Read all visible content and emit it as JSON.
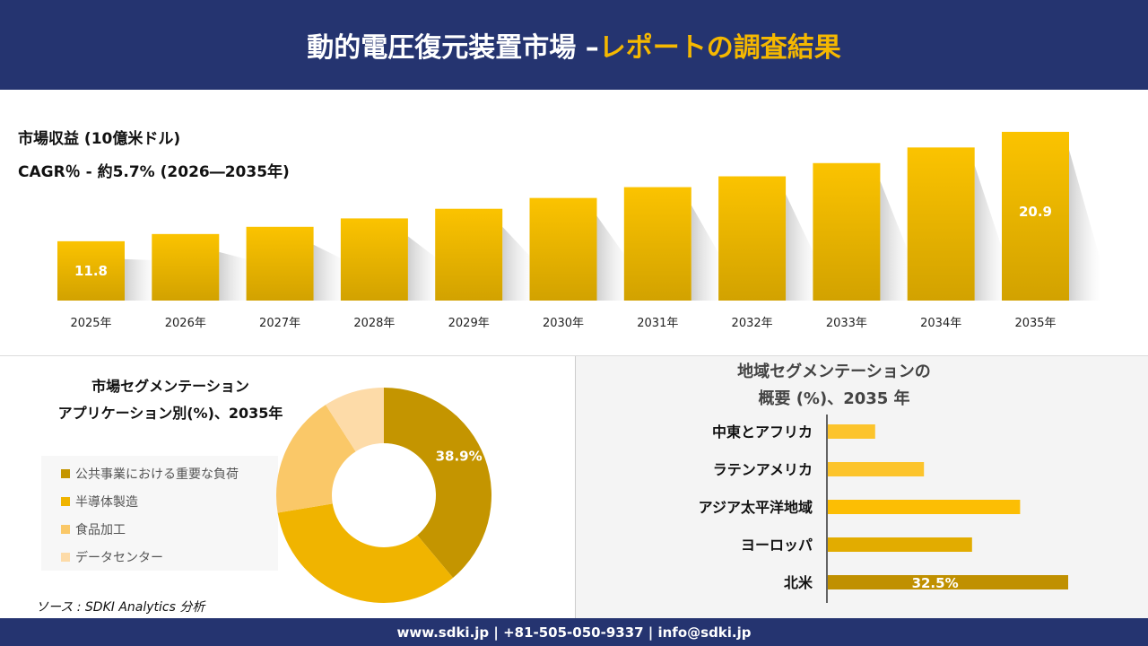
{
  "header": {
    "title_main": "動的電圧復元装置市場 –",
    "title_accent": "レポートの調査結果"
  },
  "revenue": {
    "label": "市場収益 (10億米ドル)",
    "cagr": "CAGR％ - 約5.7% (2026―2035年)"
  },
  "colors": {
    "header": "#253470",
    "accent": "#f5b800",
    "bar": "#e6b000"
  },
  "chart_data": [
    {
      "type": "bar",
      "categories": [
        "2025年",
        "2026年",
        "2027年",
        "2028年",
        "2029年",
        "2030年",
        "2031年",
        "2032年",
        "2033年",
        "2034年",
        "2035年"
      ],
      "values": [
        11.8,
        12.4,
        13.0,
        13.7,
        14.5,
        15.4,
        16.3,
        17.2,
        18.3,
        19.6,
        20.9
      ],
      "data_labels": {
        "0": "11.8",
        "10": "20.9"
      }
    },
    {
      "type": "pie",
      "title": "市場セグメンテーション\nアプリケーション別(%)、2035年",
      "title_lines": [
        "市場セグメンテーション",
        "アプリケーション別(%)、2035年"
      ],
      "categories": [
        "公共事業における重要な負荷",
        "半導体製造",
        "食品加工",
        "データセンター"
      ],
      "values": [
        38.9,
        33.5,
        18.5,
        9.1
      ],
      "colors": [
        "#c49500",
        "#f0b400",
        "#fac868",
        "#fddba8"
      ],
      "data_label": "38.9%",
      "hole": true
    },
    {
      "type": "bar",
      "orientation": "horizontal",
      "title_lines": [
        "地域セグメンテーションの",
        "概要 (%)、2035 年"
      ],
      "categories": [
        "中東とアフリカ",
        "ラテンアメリカ",
        "アジア太平洋地域",
        "ヨーロッパ",
        "北米"
      ],
      "values": [
        6.4,
        13.0,
        26.0,
        19.5,
        32.5
      ],
      "colors": [
        "#fcc42c",
        "#fcc42c",
        "#fcbe04",
        "#e2ac00",
        "#c09000"
      ],
      "data_label": "32.5%"
    }
  ],
  "source": "ソース : SDKI Analytics 分析",
  "footer": "www.sdki.jp | +81-505-050-9337 | info@sdki.jp"
}
